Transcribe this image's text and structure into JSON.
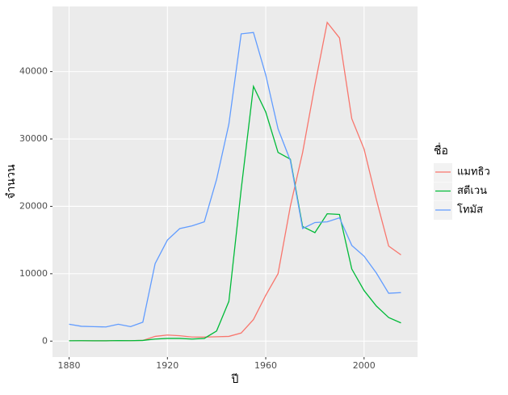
{
  "chart_data": {
    "type": "line",
    "x_label": "ปี",
    "y_label": "จำนวน",
    "legend_title": "ชื่อ",
    "x": [
      1880,
      1885,
      1890,
      1895,
      1900,
      1905,
      1910,
      1915,
      1920,
      1925,
      1930,
      1935,
      1940,
      1945,
      1950,
      1955,
      1960,
      1965,
      1970,
      1975,
      1980,
      1985,
      1990,
      1995,
      2000,
      2005,
      2010,
      2015
    ],
    "series": [
      {
        "name": "แมทธิว",
        "color": "#F8766D",
        "values": [
          50,
          50,
          40,
          40,
          80,
          60,
          100,
          700,
          900,
          800,
          600,
          600,
          650,
          700,
          1200,
          3200,
          6800,
          10000,
          20000,
          28000,
          38000,
          47300,
          45000,
          33000,
          28500,
          21000,
          14100,
          12800
        ]
      },
      {
        "name": "สตีเวน",
        "color": "#00BA38",
        "values": [
          50,
          60,
          50,
          50,
          80,
          60,
          100,
          300,
          400,
          400,
          300,
          400,
          1500,
          5900,
          22500,
          37800,
          34000,
          28000,
          27000,
          17000,
          16100,
          18900,
          18800,
          10700,
          7500,
          5200,
          3500,
          2700
        ]
      },
      {
        "name": "โทมัส",
        "color": "#619CFF",
        "values": [
          2500,
          2200,
          2150,
          2100,
          2500,
          2150,
          2800,
          11500,
          15000,
          16700,
          17100,
          17700,
          24000,
          32200,
          45600,
          45800,
          39500,
          31500,
          26800,
          16700,
          17600,
          17700,
          18300,
          14200,
          12600,
          10100,
          7100,
          7200
        ]
      }
    ],
    "xlim": [
      1873.25,
      2021.75
    ],
    "xticks": [
      1880,
      1920,
      1960,
      2000
    ],
    "ylim": [
      -2365,
      49665
    ],
    "yticks": [
      0,
      10000,
      20000,
      30000,
      40000
    ],
    "grid": true,
    "legend_position": "right"
  }
}
